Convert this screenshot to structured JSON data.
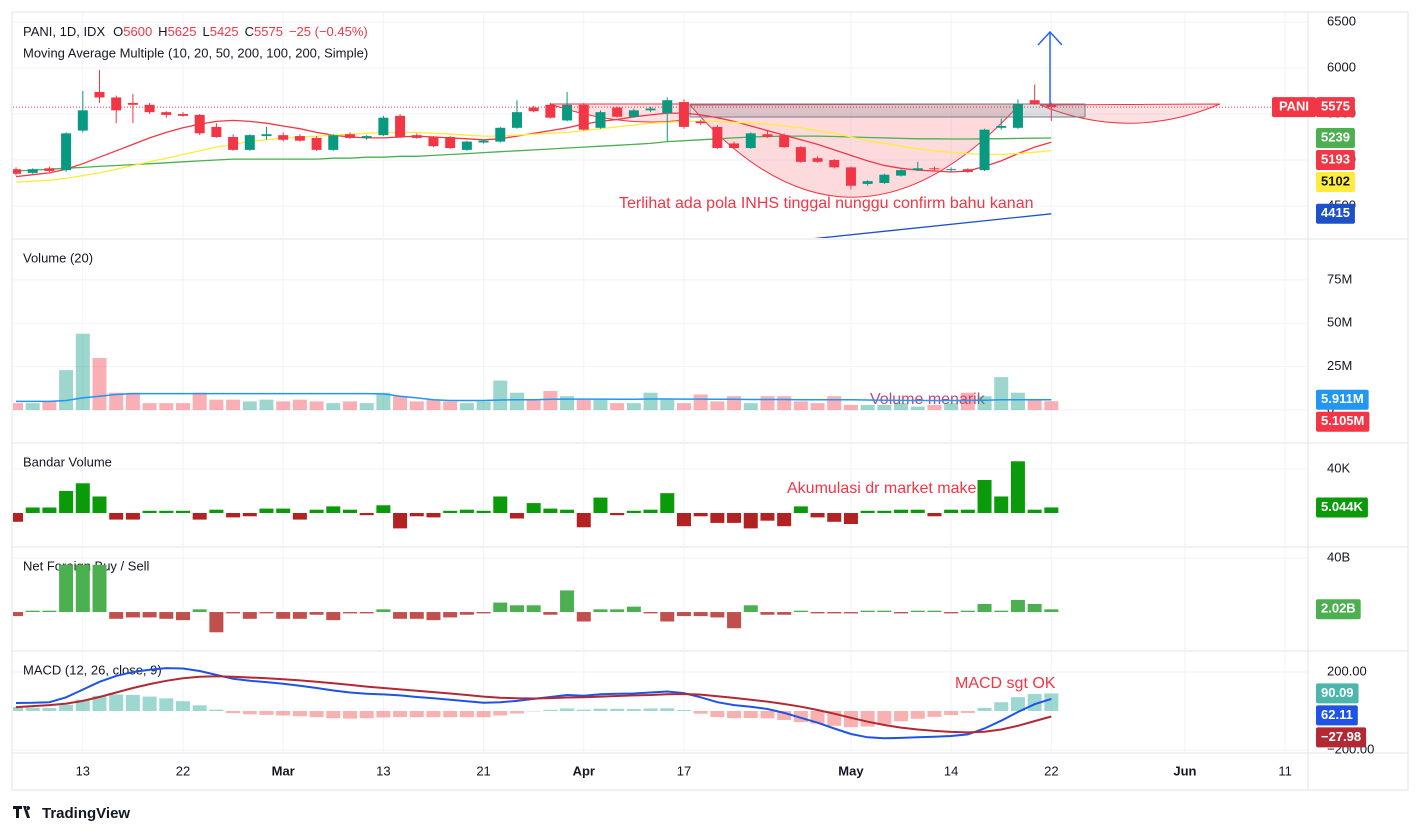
{
  "chart_data": [
    {
      "type": "candlestick",
      "title": "PANI, 1D, IDX",
      "symbol": "PANI",
      "ohlc_letters": [
        "O",
        "H",
        "L",
        "C"
      ],
      "change": "−25 (−0.45%)",
      "subtitle": "Moving Average Multiple (10, 20, 50, 200, 100, 200, Simple)",
      "annotation": "Terlihat ada pola INHS tinggal nunggu confirm bahu kanan",
      "up_color": "#089981",
      "down_color": "#f23645",
      "open": [
        4900,
        4860,
        4910,
        4890,
        5320,
        5740,
        5680,
        5620,
        5600,
        5520,
        5500,
        5490,
        5360,
        5250,
        5110,
        5260,
        5270,
        5260,
        5240,
        5110,
        5280,
        5240,
        5270,
        5480,
        5270,
        5250,
        5250,
        5110,
        5190,
        5200,
        5350,
        5570,
        5600,
        5430,
        5600,
        5350,
        5570,
        5470,
        5540,
        5510,
        5630,
        5420,
        5360,
        5180,
        5130,
        5280,
        5270,
        5140,
        5020,
        5000,
        4920,
        4740,
        4750,
        4830,
        4890,
        4910,
        4890,
        4900,
        4890,
        5350,
        5350,
        5650,
        5600
      ],
      "high": [
        4920,
        4910,
        4930,
        5300,
        5750,
        5980,
        5700,
        5720,
        5620,
        5530,
        5520,
        5500,
        5400,
        5280,
        5280,
        5360,
        5300,
        5280,
        5260,
        5280,
        5300,
        5270,
        5480,
        5500,
        5290,
        5260,
        5260,
        5210,
        5220,
        5360,
        5650,
        5590,
        5620,
        5740,
        5620,
        5540,
        5580,
        5560,
        5580,
        5680,
        5660,
        5440,
        5380,
        5200,
        5300,
        5320,
        5290,
        5150,
        5040,
        5010,
        4930,
        4780,
        4850,
        4900,
        4980,
        4930,
        4920,
        4910,
        5340,
        5450,
        5660,
        5820,
        5625
      ],
      "low": [
        4830,
        4850,
        4870,
        4870,
        5300,
        5620,
        5400,
        5400,
        5500,
        5460,
        5470,
        5270,
        5240,
        5100,
        5100,
        5220,
        5200,
        5200,
        5100,
        5100,
        5230,
        5220,
        5260,
        5240,
        5230,
        5140,
        5120,
        5100,
        5180,
        5190,
        5340,
        5520,
        5450,
        5420,
        5320,
        5340,
        5460,
        5460,
        5520,
        5200,
        5340,
        5380,
        5120,
        5120,
        5120,
        5240,
        5130,
        4970,
        4970,
        4910,
        4680,
        4720,
        4740,
        4820,
        4880,
        4880,
        4870,
        4860,
        4880,
        5330,
        5340,
        5600,
        5425
      ],
      "close": [
        4850,
        4900,
        4880,
        5290,
        5540,
        5680,
        5540,
        5600,
        5520,
        5490,
        5480,
        5290,
        5250,
        5110,
        5270,
        5280,
        5220,
        5210,
        5110,
        5270,
        5240,
        5260,
        5460,
        5250,
        5240,
        5150,
        5130,
        5200,
        5210,
        5350,
        5520,
        5530,
        5460,
        5600,
        5330,
        5520,
        5470,
        5540,
        5560,
        5650,
        5360,
        5400,
        5130,
        5130,
        5290,
        5250,
        5140,
        4980,
        4980,
        4920,
        4720,
        4770,
        4840,
        4890,
        4910,
        4900,
        4900,
        4870,
        5330,
        5370,
        5610,
        5610,
        5575
      ],
      "series": [
        {
          "color": "#4caf50",
          "values": [
            4880,
            4890,
            4900,
            4910,
            4920,
            4930,
            4940,
            4950,
            4960,
            4970,
            4980,
            4990,
            5000,
            5010,
            5010,
            5010,
            5010,
            5010,
            5010,
            5020,
            5020,
            5030,
            5030,
            5040,
            5040,
            5050,
            5060,
            5070,
            5080,
            5090,
            5100,
            5110,
            5120,
            5130,
            5140,
            5150,
            5160,
            5170,
            5180,
            5200,
            5210,
            5220,
            5230,
            5240,
            5250,
            5255,
            5260,
            5260,
            5260,
            5255,
            5250,
            5245,
            5240,
            5235,
            5230,
            5230,
            5228,
            5228,
            5230,
            5232,
            5235,
            5237,
            5239
          ]
        },
        {
          "color": "#f23645",
          "values": [
            4820,
            4840,
            4860,
            4900,
            4960,
            5030,
            5100,
            5170,
            5240,
            5300,
            5350,
            5390,
            5420,
            5430,
            5420,
            5400,
            5370,
            5340,
            5300,
            5270,
            5250,
            5240,
            5240,
            5250,
            5260,
            5250,
            5240,
            5230,
            5220,
            5230,
            5260,
            5290,
            5320,
            5350,
            5390,
            5420,
            5440,
            5470,
            5490,
            5510,
            5510,
            5490,
            5460,
            5420,
            5370,
            5320,
            5270,
            5220,
            5170,
            5110,
            5050,
            4990,
            4940,
            4910,
            4890,
            4880,
            4870,
            4880,
            4930,
            4990,
            5070,
            5140,
            5193
          ]
        },
        {
          "color": "#ffeb3b",
          "values": [
            4760,
            4770,
            4780,
            4800,
            4830,
            4860,
            4900,
            4940,
            4980,
            5020,
            5060,
            5100,
            5140,
            5170,
            5200,
            5220,
            5240,
            5250,
            5260,
            5270,
            5280,
            5290,
            5300,
            5300,
            5300,
            5290,
            5280,
            5270,
            5260,
            5260,
            5270,
            5280,
            5290,
            5300,
            5320,
            5340,
            5360,
            5380,
            5400,
            5410,
            5420,
            5420,
            5420,
            5410,
            5400,
            5390,
            5370,
            5350,
            5320,
            5290,
            5250,
            5210,
            5180,
            5150,
            5120,
            5100,
            5080,
            5070,
            5060,
            5060,
            5070,
            5085,
            5102
          ]
        }
      ],
      "trendline": {
        "color": "#1e50c8",
        "x": [
          47,
          62
        ],
        "values": [
          4130,
          4415
        ]
      },
      "ylim": [
        4152,
        6609
      ],
      "yticks": [
        4500,
        5000,
        5500,
        6000,
        6500
      ]
    },
    {
      "type": "bar",
      "title": "Volume (20)",
      "annotation": "Volume menarik",
      "color_by": "price",
      "up_color": "#089981",
      "down_color": "#f23645",
      "opacity": 0.4,
      "values": [
        4,
        4,
        5,
        23,
        44,
        30,
        10,
        10,
        4,
        4,
        4,
        10,
        6,
        6,
        5,
        6,
        5,
        6,
        5,
        4,
        5,
        4,
        10,
        8,
        5,
        6,
        5,
        4,
        5,
        17,
        10,
        6,
        11,
        8,
        6,
        6,
        4,
        4,
        10,
        6,
        4,
        9,
        5,
        8,
        4,
        8,
        8,
        5,
        4,
        8,
        3,
        3,
        3,
        4,
        2,
        3,
        4,
        10,
        8,
        19,
        10,
        6,
        5.105
      ],
      "value_labels": {
        "62": "5.105M"
      },
      "series": [
        {
          "color": "#2196f3",
          "values": [
            5,
            5,
            5,
            5.5,
            7,
            8,
            9,
            9.5,
            9.5,
            9.5,
            9.5,
            9.5,
            9.5,
            9.5,
            9.5,
            9.5,
            9.5,
            9.5,
            9.5,
            9.5,
            9.5,
            9.5,
            9.3,
            8,
            7,
            6,
            5.5,
            5.5,
            5.5,
            5.8,
            6,
            6,
            6.2,
            6.3,
            6.3,
            6.3,
            6.2,
            6.2,
            6.4,
            6.4,
            6.3,
            6.3,
            6.2,
            6.2,
            6.1,
            6.1,
            6.1,
            6,
            6,
            6,
            5.9,
            5.8,
            5.7,
            5.6,
            5.5,
            5.5,
            5.5,
            5.6,
            5.7,
            5.9,
            5.9,
            5.9,
            5.911
          ],
          "value_labels": {
            "62": "5.911M"
          }
        }
      ],
      "ylim": [
        -18.4,
        98
      ],
      "yticks": [
        0,
        {
          "value": 25,
          "label": "25M"
        },
        {
          "value": 50,
          "label": "50M"
        },
        {
          "value": 75,
          "label": "75M"
        }
      ]
    },
    {
      "type": "bar",
      "title": "Bandar Volume",
      "annotation": "Akumulasi dr market maker",
      "color_by": "sign",
      "up_color": "#0a9a0a",
      "down_color": "#b22222",
      "opacity": 1,
      "values": [
        -8,
        5,
        5,
        20,
        27,
        15,
        -6,
        -6,
        2,
        2,
        2,
        -6,
        3,
        -4,
        -3,
        4,
        4,
        -6,
        3,
        6,
        3,
        -2,
        7,
        -14,
        -3,
        -4,
        2,
        3,
        2,
        15,
        -5,
        9,
        4,
        3,
        -13,
        14,
        -2,
        2,
        3,
        18,
        -12,
        -3,
        -9,
        -9,
        -14,
        -7,
        -12,
        6,
        -4,
        -8,
        -10,
        2,
        2,
        3,
        3,
        -3,
        3,
        3,
        30,
        15,
        47,
        3,
        5.044
      ],
      "value_labels": {
        "62": "5.044K"
      },
      "ylim": [
        -30,
        62.7
      ],
      "yticks": [
        {
          "value": 40,
          "label": "40K"
        }
      ]
    },
    {
      "type": "bar",
      "title": "Net Foreign Buy / Sell",
      "color_by": "sign",
      "up_color": "#4caf50",
      "down_color": "#c0504d",
      "opacity": 1,
      "values": [
        -3,
        1,
        1,
        35,
        35,
        35,
        -5,
        -4,
        -4,
        -5,
        -6,
        2,
        -15,
        -1,
        -5,
        -1,
        -5,
        -5,
        -2,
        -6,
        -1,
        -1,
        2,
        -5,
        -5,
        -6,
        -4,
        -2,
        -1,
        7,
        5,
        5,
        -2,
        16,
        -7,
        2,
        2,
        4,
        -1,
        -7,
        -3,
        -3,
        -4,
        -12,
        5,
        -2,
        -2,
        1,
        -1,
        -1,
        -1,
        1,
        1,
        -1,
        1,
        1,
        -1,
        1,
        6,
        1,
        9,
        6,
        2.02
      ],
      "value_labels": {
        "62": "2.02B"
      },
      "ylim": [
        -28.1,
        47.4
      ],
      "yticks": [
        {
          "value": 40,
          "label": "40B"
        }
      ]
    },
    {
      "type": "macd",
      "title": "MACD (12, 26, close, 9)",
      "annotation": "MACD sgt OK",
      "up_color": "#26a69a",
      "down_color": "#ef5350",
      "opacity": 0.45,
      "histogram": [
        21,
        17,
        15,
        32,
        58,
        78,
        85,
        82,
        74,
        65,
        50,
        29,
        7,
        -11,
        -17,
        -20,
        -23,
        -27,
        -32,
        -37,
        -39,
        -37,
        -33,
        -31,
        -32,
        -32,
        -32,
        -32,
        -32,
        -23,
        -13,
        -2,
        6,
        13,
        7,
        12,
        11,
        10,
        13,
        14,
        5,
        -14,
        -31,
        -37,
        -36,
        -38,
        -46,
        -57,
        -65,
        -76,
        -83,
        -80,
        -68,
        -53,
        -40,
        -30,
        -21,
        -10,
        16,
        45,
        71,
        87,
        90.09
      ],
      "series": [
        {
          "color": "#1e53e5",
          "values": [
            41,
            42,
            45,
            70,
            110,
            150,
            180,
            200,
            212,
            220,
            218,
            205,
            185,
            165,
            155,
            148,
            140,
            130,
            118,
            105,
            95,
            88,
            85,
            80,
            72,
            65,
            58,
            50,
            42,
            45,
            52,
            62,
            72,
            82,
            78,
            86,
            88,
            90,
            95,
            100,
            92,
            70,
            45,
            30,
            22,
            10,
            -10,
            -35,
            -60,
            -90,
            -118,
            -135,
            -140,
            -138,
            -135,
            -132,
            -128,
            -120,
            -90,
            -50,
            -5,
            35,
            62.11
          ]
        },
        {
          "color": "#b22833",
          "values": [
            20,
            25,
            30,
            38,
            52,
            72,
            95,
            118,
            138,
            155,
            168,
            176,
            178,
            176,
            172,
            168,
            163,
            157,
            150,
            142,
            134,
            125,
            118,
            111,
            104,
            97,
            90,
            82,
            74,
            68,
            65,
            64,
            66,
            69,
            71,
            74,
            77,
            80,
            82,
            86,
            87,
            84,
            76,
            67,
            58,
            48,
            36,
            22,
            5,
            -14,
            -35,
            -55,
            -72,
            -85,
            -95,
            -102,
            -107,
            -110,
            -106,
            -95,
            -76,
            -52,
            -27.98
          ],
          "value_labels": {
            "62": "−27.98"
          }
        }
      ],
      "ylim": [
        -210.3,
        302.6
      ],
      "yticks": [
        {
          "value": -200,
          "label": "−200.00"
        },
        {
          "value": 200,
          "label": "200.00"
        }
      ],
      "xlim": [
        -0.18,
        77.37
      ],
      "xticks": [
        {
          "value": 4,
          "label": "13"
        },
        {
          "value": 10,
          "label": "22"
        },
        {
          "value": 16,
          "label": "Mar"
        },
        {
          "value": 22,
          "label": "13"
        },
        {
          "value": 28,
          "label": "21"
        },
        {
          "value": 34,
          "label": "Apr"
        },
        {
          "value": 40,
          "label": "17"
        },
        {
          "value": 50,
          "label": "May"
        },
        {
          "value": 56,
          "label": "14"
        },
        {
          "value": 62,
          "label": "22"
        },
        {
          "value": 70,
          "label": "Jun"
        },
        {
          "value": 76,
          "label": "11"
        }
      ]
    }
  ],
  "brand": "TradingView"
}
